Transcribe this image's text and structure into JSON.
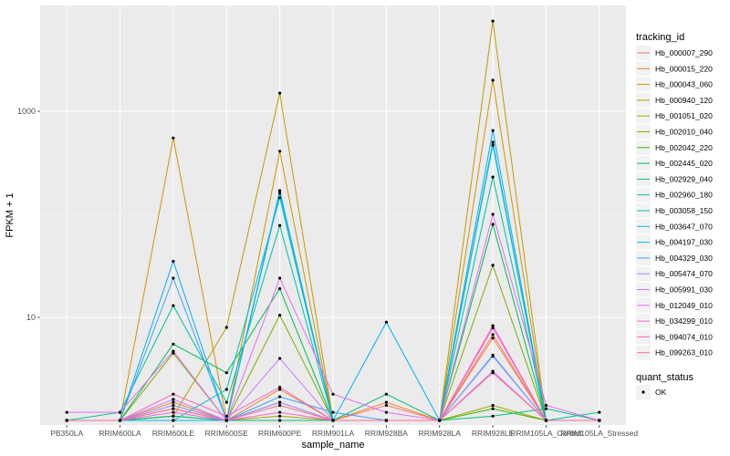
{
  "chart_data": {
    "type": "line",
    "xlabel": "sample_name",
    "ylabel": "FPKM + 1",
    "y_scale": "log10",
    "ylim": [
      1,
      10000
    ],
    "y_ticks": [
      10,
      1000
    ],
    "grid": true,
    "categories": [
      "PB350LA",
      "RRIM600LA",
      "RRIM600LE",
      "RRIM600SE",
      "RRIM600PE",
      "RRIM901LA",
      "RRIM928BA",
      "RRIM928LA",
      "RRIM928LE",
      "RRIM105LA_Control",
      "RRIM105LA_Stressed"
    ],
    "legend_title": "tracking_id",
    "legend_position": "right",
    "quant_status_title": "quant_status",
    "quant_status_items": [
      "OK"
    ],
    "background": "#ebebeb",
    "series": [
      {
        "name": "Hb_000007_290",
        "color": "#F8766D",
        "values": [
          1.0,
          1.0,
          1.3,
          1.0,
          1.5,
          1.0,
          1.4,
          1.0,
          6.3,
          1.0,
          1.0
        ]
      },
      {
        "name": "Hb_000015_220",
        "color": "#EA8331",
        "values": [
          1.0,
          1.0,
          1.5,
          1.0,
          2.0,
          1.0,
          1.5,
          1.0,
          6.8,
          1.0,
          1.0
        ]
      },
      {
        "name": "Hb_000043_060",
        "color": "#D89000",
        "values": [
          1.0,
          1.0,
          550,
          1.0,
          410,
          1.0,
          1.0,
          1.0,
          2000,
          1.0,
          1.0
        ]
      },
      {
        "name": "Hb_000940_120",
        "color": "#C09B00",
        "values": [
          1.0,
          1.0,
          1.1,
          8.0,
          1500,
          1.0,
          1.0,
          1.0,
          7500,
          1.0,
          1.0
        ]
      },
      {
        "name": "Hb_001051_020",
        "color": "#A3A500",
        "values": [
          1.0,
          1.0,
          1.0,
          1.0,
          1.1,
          1.0,
          1.0,
          1.0,
          1.4,
          1.0,
          1.0
        ]
      },
      {
        "name": "Hb_002010_040",
        "color": "#7CAE00",
        "values": [
          1.0,
          1.0,
          4.5,
          1.0,
          10.5,
          1.0,
          1.0,
          1.0,
          32,
          1.0,
          1.0
        ]
      },
      {
        "name": "Hb_002042_220",
        "color": "#39B600",
        "values": [
          1.0,
          1.0,
          1.1,
          1.0,
          1.0,
          1.0,
          1.0,
          1.0,
          1.3,
          1.0,
          1.0
        ]
      },
      {
        "name": "Hb_002445_020",
        "color": "#00BB4E",
        "values": [
          1.0,
          1.0,
          5.5,
          2.9,
          19,
          1.0,
          1.0,
          1.0,
          80,
          1.0,
          1.0
        ]
      },
      {
        "name": "Hb_002929_040",
        "color": "#00BF7D",
        "values": [
          1.0,
          1.0,
          1.1,
          1.0,
          1.0,
          1.0,
          1.8,
          1.0,
          1.1,
          1.3,
          1.0
        ]
      },
      {
        "name": "Hb_002960_180",
        "color": "#00C1A3",
        "values": [
          1.0,
          1.2,
          13,
          1.5,
          78,
          1.0,
          1.0,
          1.0,
          230,
          1.0,
          1.2
        ]
      },
      {
        "name": "Hb_003058_150",
        "color": "#00BFC4",
        "values": [
          1.0,
          1.0,
          1.0,
          2.0,
          145,
          1.0,
          1.0,
          1.0,
          470,
          1.0,
          1.0
        ]
      },
      {
        "name": "Hb_003647_070",
        "color": "#00BAE0",
        "values": [
          1.0,
          1.0,
          1.0,
          1.0,
          160,
          1.0,
          1.0,
          1.0,
          500,
          1.0,
          1.0
        ]
      },
      {
        "name": "Hb_004197_030",
        "color": "#00B0F6",
        "values": [
          1.0,
          1.0,
          35,
          1.0,
          170,
          1.0,
          9.0,
          1.0,
          650,
          1.0,
          1.0
        ]
      },
      {
        "name": "Hb_004329_030",
        "color": "#35A2FF",
        "values": [
          1.0,
          1.0,
          24,
          1.0,
          1.7,
          1.2,
          1.0,
          1.0,
          4.3,
          1.0,
          1.0
        ]
      },
      {
        "name": "Hb_005474_070",
        "color": "#9590FF",
        "values": [
          1.0,
          1.0,
          1.4,
          1.0,
          1.5,
          1.0,
          1.0,
          1.0,
          4.2,
          1.0,
          1.0
        ]
      },
      {
        "name": "Hb_005991_030",
        "color": "#C77CFF",
        "values": [
          1.0,
          1.0,
          1.6,
          1.0,
          4.0,
          1.0,
          1.0,
          1.0,
          3.0,
          1.0,
          1.0
        ]
      },
      {
        "name": "Hb_012049_010",
        "color": "#E76BF3",
        "values": [
          1.2,
          1.2,
          4.7,
          1.0,
          24,
          1.8,
          1.2,
          1.0,
          100,
          1.4,
          1.0
        ]
      },
      {
        "name": "Hb_034299_010",
        "color": "#FA62DB",
        "values": [
          1.0,
          1.0,
          1.2,
          1.0,
          1.2,
          1.0,
          1.0,
          1.0,
          7.9,
          1.0,
          1.0
        ]
      },
      {
        "name": "Hb_094074_010",
        "color": "#FF62BC",
        "values": [
          1.0,
          1.0,
          1.8,
          1.1,
          2.1,
          1.0,
          1.0,
          1.0,
          8.3,
          1.0,
          1.0
        ]
      },
      {
        "name": "Hb_099263_010",
        "color": "#FF6C91",
        "values": [
          1.0,
          1.0,
          1.3,
          1.0,
          1.4,
          1.0,
          1.0,
          1.0,
          2.9,
          1.0,
          1.0
        ]
      }
    ]
  }
}
